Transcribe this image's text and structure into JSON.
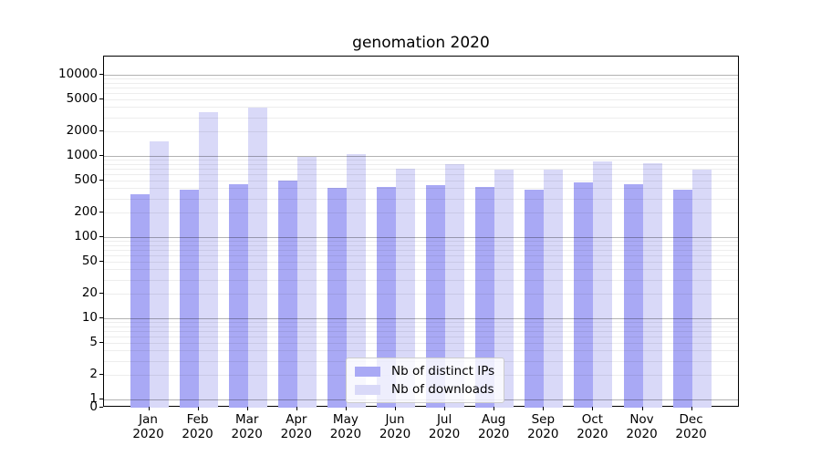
{
  "title": "genomation 2020",
  "colors": {
    "background": "#ffffff",
    "axis": "#000000",
    "ips_bar": "#a9a9f5",
    "downloads_bar": "#d9d9f8",
    "grid_major": "#b3b3b3",
    "grid_minor": "#ededed",
    "legend_border": "#cccccc"
  },
  "legend": {
    "entries": [
      "Nb of distinct IPs",
      "Nb of downloads"
    ]
  },
  "y_axis": {
    "tick_labels": [
      "0",
      "1",
      "2",
      "5",
      "10",
      "20",
      "50",
      "100",
      "200",
      "500",
      "1000",
      "2000",
      "5000",
      "10000"
    ]
  },
  "chart_data": {
    "type": "bar",
    "title": "genomation 2020",
    "categories": [
      "Jan 2020",
      "Feb 2020",
      "Mar 2020",
      "Apr 2020",
      "May 2020",
      "Jun 2020",
      "Jul 2020",
      "Aug 2020",
      "Sep 2020",
      "Oct 2020",
      "Nov 2020",
      "Dec 2020"
    ],
    "series": [
      {
        "name": "Nb of distinct IPs",
        "color": "#a9a9f5",
        "values": [
          340,
          380,
          450,
          500,
          400,
          420,
          440,
          410,
          380,
          470,
          450,
          380
        ]
      },
      {
        "name": "Nb of downloads",
        "color": "#d9d9f8",
        "values": [
          1500,
          3500,
          3900,
          980,
          1040,
          700,
          790,
          670,
          670,
          860,
          810,
          680
        ]
      }
    ],
    "xlabel": "",
    "ylabel": "",
    "yscale": "symlog",
    "ylim": [
      0,
      15500
    ],
    "yticks": [
      0,
      1,
      2,
      5,
      10,
      20,
      50,
      100,
      200,
      500,
      1000,
      2000,
      5000,
      10000
    ],
    "grid": "horizontal major + log minor, drawn over bars",
    "legend_position": "lower center inside plot"
  }
}
